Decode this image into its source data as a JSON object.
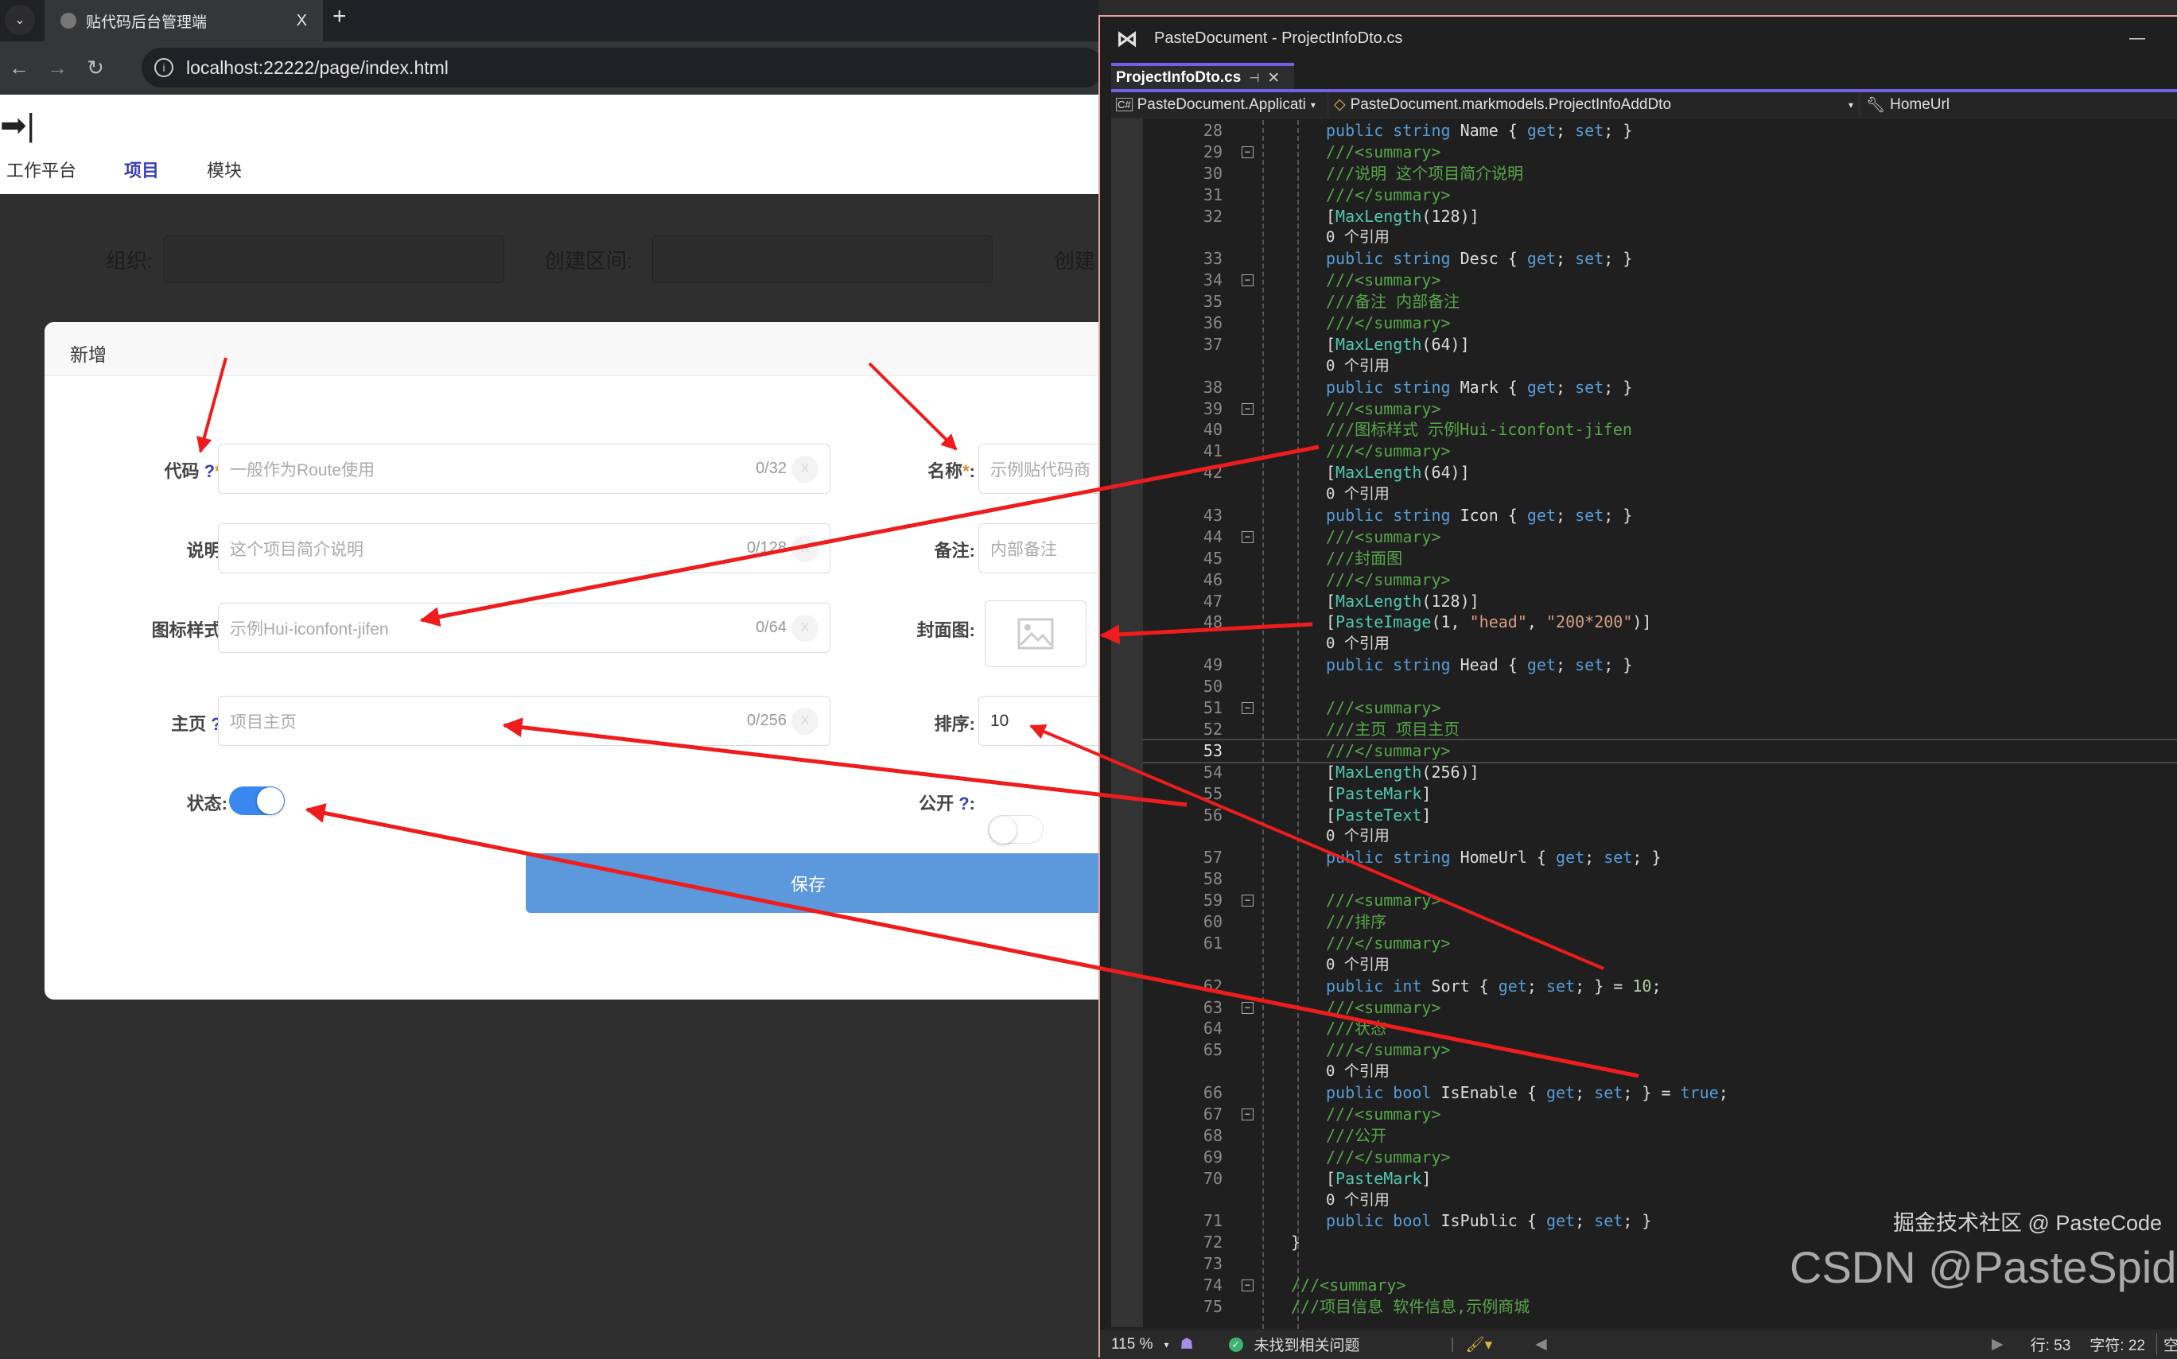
{
  "browser": {
    "tab_title": "贴代码后台管理端",
    "tab_close": "X",
    "new_tab": "+",
    "url": "localhost:22222/page/index.html"
  },
  "page": {
    "logo": "➡|",
    "menu": [
      "工作平台",
      "项目",
      "模块"
    ],
    "active_menu": "项目",
    "filter": {
      "org_label": "组织:",
      "range_label": "创建区间:",
      "creator_label": "创建"
    }
  },
  "dialog": {
    "title": "新增",
    "fields": {
      "code": {
        "label": "代码",
        "help": "?",
        "required": "*",
        "placeholder": "一般作为Route使用",
        "count": "0/32"
      },
      "desc": {
        "label": "说明:",
        "placeholder": "这个项目简介说明",
        "count": "0/128"
      },
      "icon": {
        "label": "图标样式:",
        "placeholder": "示例Hui-iconfont-jifen",
        "count": "0/64"
      },
      "home": {
        "label": "主页",
        "help": "?",
        "placeholder": "项目主页",
        "count": "0/256"
      },
      "status": {
        "label": "状态:",
        "on": true
      },
      "name": {
        "label": "名称",
        "required": "*",
        "placeholder": "示例贴代码商"
      },
      "mark": {
        "label": "备注:",
        "placeholder": "内部备注"
      },
      "cover": {
        "label": "封面图:",
        "icon": "image-placeholder-icon"
      },
      "sort": {
        "label": "排序:",
        "value": "10"
      },
      "public": {
        "label": "公开",
        "help": "?",
        "on": false
      }
    },
    "clear_glyph": "X",
    "save_label": "保存",
    "accent": "#5b98dc"
  },
  "vs": {
    "title": "PasteDocument - ProjectInfoDto.cs",
    "tab": "ProjectInfoDto.cs",
    "tab_pin": "⊣",
    "tab_close": "✕",
    "nav_project": "PasteDocument.Applicati",
    "nav_class": "PasteDocument.markmodels.ProjectInfoAddDto",
    "nav_member": "HomeUrl",
    "code": [
      {
        "n": "28",
        "i": 2,
        "t": [
          [
            "public ",
            "kw"
          ],
          [
            "string ",
            "kw"
          ],
          [
            "Name { ",
            "pl"
          ],
          [
            "get",
            "kw"
          ],
          [
            "; ",
            "pl"
          ],
          [
            "set",
            "kw"
          ],
          [
            "; }",
            "pl"
          ]
        ]
      },
      {
        "n": "29",
        "i": 2,
        "f": true,
        "t": [
          [
            "///<summary>",
            "cm"
          ]
        ]
      },
      {
        "n": "30",
        "i": 2,
        "t": [
          [
            "///说明 这个项目简介说明",
            "cm"
          ]
        ]
      },
      {
        "n": "31",
        "i": 2,
        "t": [
          [
            "///</summary>",
            "cm"
          ]
        ]
      },
      {
        "n": "32",
        "i": 2,
        "t": [
          [
            "[",
            "pl"
          ],
          [
            "MaxLength",
            "ty"
          ],
          [
            "(128)]",
            "pl"
          ]
        ]
      },
      {
        "n": "",
        "i": 2,
        "lens": true,
        "t": [
          [
            "0 个引用",
            "pl"
          ]
        ]
      },
      {
        "n": "33",
        "i": 2,
        "t": [
          [
            "public ",
            "kw"
          ],
          [
            "string ",
            "kw"
          ],
          [
            "Desc { ",
            "pl"
          ],
          [
            "get",
            "kw"
          ],
          [
            "; ",
            "pl"
          ],
          [
            "set",
            "kw"
          ],
          [
            "; }",
            "pl"
          ]
        ]
      },
      {
        "n": "34",
        "i": 2,
        "f": true,
        "t": [
          [
            "///<summary>",
            "cm"
          ]
        ]
      },
      {
        "n": "35",
        "i": 2,
        "t": [
          [
            "///备注 内部备注",
            "cm"
          ]
        ]
      },
      {
        "n": "36",
        "i": 2,
        "t": [
          [
            "///</summary>",
            "cm"
          ]
        ]
      },
      {
        "n": "37",
        "i": 2,
        "t": [
          [
            "[",
            "pl"
          ],
          [
            "MaxLength",
            "ty"
          ],
          [
            "(64)]",
            "pl"
          ]
        ]
      },
      {
        "n": "",
        "i": 2,
        "lens": true,
        "t": [
          [
            "0 个引用",
            "pl"
          ]
        ]
      },
      {
        "n": "38",
        "i": 2,
        "t": [
          [
            "public ",
            "kw"
          ],
          [
            "string ",
            "kw"
          ],
          [
            "Mark { ",
            "pl"
          ],
          [
            "get",
            "kw"
          ],
          [
            "; ",
            "pl"
          ],
          [
            "set",
            "kw"
          ],
          [
            "; }",
            "pl"
          ]
        ]
      },
      {
        "n": "39",
        "i": 2,
        "f": true,
        "t": [
          [
            "///<summary>",
            "cm"
          ]
        ]
      },
      {
        "n": "40",
        "i": 2,
        "t": [
          [
            "///图标样式 示例Hui-iconfont-jifen",
            "cm"
          ]
        ]
      },
      {
        "n": "41",
        "i": 2,
        "t": [
          [
            "///</summary>",
            "cm"
          ]
        ]
      },
      {
        "n": "42",
        "i": 2,
        "t": [
          [
            "[",
            "pl"
          ],
          [
            "MaxLength",
            "ty"
          ],
          [
            "(64)]",
            "pl"
          ]
        ]
      },
      {
        "n": "",
        "i": 2,
        "lens": true,
        "t": [
          [
            "0 个引用",
            "pl"
          ]
        ]
      },
      {
        "n": "43",
        "i": 2,
        "t": [
          [
            "public ",
            "kw"
          ],
          [
            "string ",
            "kw"
          ],
          [
            "Icon { ",
            "pl"
          ],
          [
            "get",
            "kw"
          ],
          [
            "; ",
            "pl"
          ],
          [
            "set",
            "kw"
          ],
          [
            "; }",
            "pl"
          ]
        ]
      },
      {
        "n": "44",
        "i": 2,
        "f": true,
        "t": [
          [
            "///<summary>",
            "cm"
          ]
        ]
      },
      {
        "n": "45",
        "i": 2,
        "t": [
          [
            "///封面图",
            "cm"
          ]
        ]
      },
      {
        "n": "46",
        "i": 2,
        "t": [
          [
            "///</summary>",
            "cm"
          ]
        ]
      },
      {
        "n": "47",
        "i": 2,
        "t": [
          [
            "[",
            "pl"
          ],
          [
            "MaxLength",
            "ty"
          ],
          [
            "(128)]",
            "pl"
          ]
        ]
      },
      {
        "n": "48",
        "i": 2,
        "t": [
          [
            "[",
            "pl"
          ],
          [
            "PasteImage",
            "ty"
          ],
          [
            "(1, ",
            "pl"
          ],
          [
            "\"head\"",
            "st"
          ],
          [
            ", ",
            "pl"
          ],
          [
            "\"200*200\"",
            "st"
          ],
          [
            ")]",
            "pl"
          ]
        ]
      },
      {
        "n": "",
        "i": 2,
        "lens": true,
        "t": [
          [
            "0 个引用",
            "pl"
          ]
        ]
      },
      {
        "n": "49",
        "i": 2,
        "t": [
          [
            "public ",
            "kw"
          ],
          [
            "string ",
            "kw"
          ],
          [
            "Head { ",
            "pl"
          ],
          [
            "get",
            "kw"
          ],
          [
            "; ",
            "pl"
          ],
          [
            "set",
            "kw"
          ],
          [
            "; }",
            "pl"
          ]
        ]
      },
      {
        "n": "50",
        "i": 2,
        "t": []
      },
      {
        "n": "51",
        "i": 2,
        "f": true,
        "t": [
          [
            "///<summary>",
            "cm"
          ]
        ]
      },
      {
        "n": "52",
        "i": 2,
        "t": [
          [
            "///主页 项目主页",
            "cm"
          ]
        ]
      },
      {
        "n": "53",
        "i": 2,
        "cur": true,
        "t": [
          [
            "///</summary>",
            "cm"
          ]
        ]
      },
      {
        "n": "54",
        "i": 2,
        "t": [
          [
            "[",
            "pl"
          ],
          [
            "MaxLength",
            "ty"
          ],
          [
            "(256)]",
            "pl"
          ]
        ]
      },
      {
        "n": "55",
        "i": 2,
        "t": [
          [
            "[",
            "pl"
          ],
          [
            "PasteMark",
            "ty"
          ],
          [
            "]",
            "pl"
          ]
        ]
      },
      {
        "n": "56",
        "i": 2,
        "t": [
          [
            "[",
            "pl"
          ],
          [
            "PasteText",
            "ty"
          ],
          [
            "]",
            "pl"
          ]
        ]
      },
      {
        "n": "",
        "i": 2,
        "lens": true,
        "t": [
          [
            "0 个引用",
            "pl"
          ]
        ]
      },
      {
        "n": "57",
        "i": 2,
        "t": [
          [
            "public ",
            "kw"
          ],
          [
            "string ",
            "kw"
          ],
          [
            "HomeUrl { ",
            "pl"
          ],
          [
            "get",
            "kw"
          ],
          [
            "; ",
            "pl"
          ],
          [
            "set",
            "kw"
          ],
          [
            "; }",
            "pl"
          ]
        ]
      },
      {
        "n": "58",
        "i": 2,
        "t": []
      },
      {
        "n": "59",
        "i": 2,
        "f": true,
        "t": [
          [
            "///<summary>",
            "cm"
          ]
        ]
      },
      {
        "n": "60",
        "i": 2,
        "t": [
          [
            "///排序",
            "cm"
          ]
        ]
      },
      {
        "n": "61",
        "i": 2,
        "t": [
          [
            "///</summary>",
            "cm"
          ]
        ]
      },
      {
        "n": "",
        "i": 2,
        "lens": true,
        "t": [
          [
            "0 个引用",
            "pl"
          ]
        ]
      },
      {
        "n": "62",
        "i": 2,
        "t": [
          [
            "public ",
            "kw"
          ],
          [
            "int ",
            "kw"
          ],
          [
            "Sort { ",
            "pl"
          ],
          [
            "get",
            "kw"
          ],
          [
            "; ",
            "pl"
          ],
          [
            "set",
            "kw"
          ],
          [
            "; } = ",
            "pl"
          ],
          [
            "10",
            "nu"
          ],
          [
            ";",
            "pl"
          ]
        ]
      },
      {
        "n": "63",
        "i": 2,
        "f": true,
        "t": [
          [
            "///<summary>",
            "cm"
          ]
        ]
      },
      {
        "n": "64",
        "i": 2,
        "t": [
          [
            "///状态",
            "cm"
          ]
        ]
      },
      {
        "n": "65",
        "i": 2,
        "t": [
          [
            "///</summary>",
            "cm"
          ]
        ]
      },
      {
        "n": "",
        "i": 2,
        "lens": true,
        "t": [
          [
            "0 个引用",
            "pl"
          ]
        ]
      },
      {
        "n": "66",
        "i": 2,
        "t": [
          [
            "public ",
            "kw"
          ],
          [
            "bool ",
            "kw"
          ],
          [
            "IsEnable { ",
            "pl"
          ],
          [
            "get",
            "kw"
          ],
          [
            "; ",
            "pl"
          ],
          [
            "set",
            "kw"
          ],
          [
            "; } = ",
            "pl"
          ],
          [
            "true",
            "kw"
          ],
          [
            ";",
            "pl"
          ]
        ]
      },
      {
        "n": "67",
        "i": 2,
        "f": true,
        "t": [
          [
            "///<summary>",
            "cm"
          ]
        ]
      },
      {
        "n": "68",
        "i": 2,
        "t": [
          [
            "///公开",
            "cm"
          ]
        ]
      },
      {
        "n": "69",
        "i": 2,
        "t": [
          [
            "///</summary>",
            "cm"
          ]
        ]
      },
      {
        "n": "70",
        "i": 2,
        "t": [
          [
            "[",
            "pl"
          ],
          [
            "PasteMark",
            "ty"
          ],
          [
            "]",
            "pl"
          ]
        ]
      },
      {
        "n": "",
        "i": 2,
        "lens": true,
        "t": [
          [
            "0 个引用",
            "pl"
          ]
        ]
      },
      {
        "n": "71",
        "i": 2,
        "t": [
          [
            "public ",
            "kw"
          ],
          [
            "bool ",
            "kw"
          ],
          [
            "IsPublic { ",
            "pl"
          ],
          [
            "get",
            "kw"
          ],
          [
            "; ",
            "pl"
          ],
          [
            "set",
            "kw"
          ],
          [
            "; }",
            "pl"
          ]
        ]
      },
      {
        "n": "72",
        "i": 1,
        "t": [
          [
            "}",
            "pl"
          ]
        ]
      },
      {
        "n": "73",
        "i": 1,
        "t": []
      },
      {
        "n": "74",
        "i": 1,
        "f": true,
        "t": [
          [
            "///<summary>",
            "cm"
          ]
        ]
      },
      {
        "n": "75",
        "i": 1,
        "t": [
          [
            "///项目信息 软件信息,示例商城",
            "cm"
          ]
        ]
      }
    ],
    "status": {
      "zoom": "115 %",
      "issues": "未找到相关问题",
      "line": "行: 53",
      "char": "字符: 22",
      "space": "空"
    }
  },
  "watermark": {
    "csdn": "CSDN @PasteSpider",
    "juejin": "掘金技术社区 @ PasteCode"
  },
  "annotation_color": "#ee1c1c"
}
